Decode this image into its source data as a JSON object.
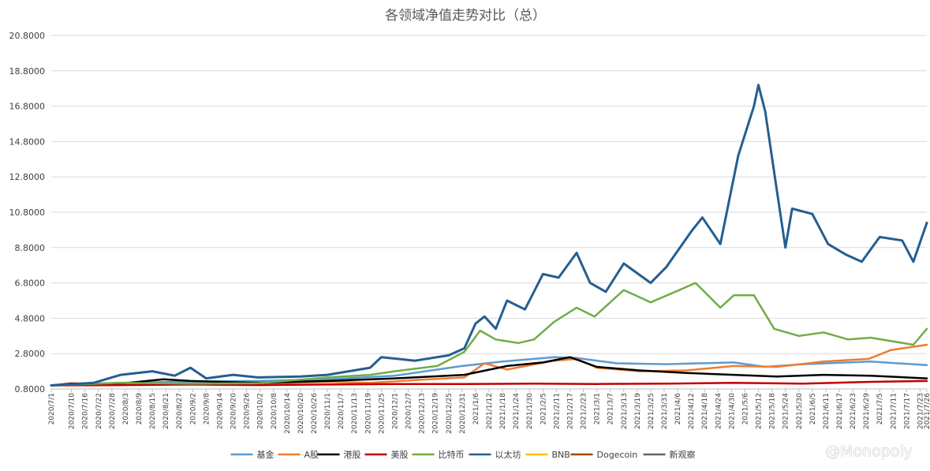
{
  "chart_data": {
    "type": "line",
    "title": "各领域净值走势对比（总）",
    "xlabel": "",
    "ylabel": "",
    "ylim": [
      0.8,
      20.8
    ],
    "yticks": [
      "0.8000",
      "2.8000",
      "4.8000",
      "6.8000",
      "8.8000",
      "10.8000",
      "12.8000",
      "14.8000",
      "16.8000",
      "18.8000",
      "20.8000"
    ],
    "grid": true,
    "legend": "bottom",
    "x_start": "2020/7/1",
    "x_end": "2021/7/26",
    "x_labels": [
      "2020/7/1",
      "2020/7/10",
      "2020/7/16",
      "2020/7/22",
      "2020/7/28",
      "2020/8/3",
      "2020/8/9",
      "2020/8/15",
      "2020/8/21",
      "2020/8/27",
      "2020/9/2",
      "2020/9/8",
      "2020/9/14",
      "2020/9/20",
      "2020/9/26",
      "2020/10/2",
      "2020/10/8",
      "2020/10/14",
      "2020/10/20",
      "2020/10/26",
      "2020/11/1",
      "2020/11/7",
      "2020/11/13",
      "2020/11/19",
      "2020/11/25",
      "2020/12/1",
      "2020/12/7",
      "2020/12/13",
      "2020/12/19",
      "2020/12/25",
      "2020/12/31",
      "2021/1/6",
      "2021/1/12",
      "2021/1/18",
      "2021/1/24",
      "2021/1/30",
      "2021/2/5",
      "2021/2/11",
      "2021/2/17",
      "2021/2/23",
      "2021/3/1",
      "2021/3/7",
      "2021/3/13",
      "2021/3/19",
      "2021/3/25",
      "2021/3/31",
      "2021/4/6",
      "2021/4/12",
      "2021/4/18",
      "2021/4/24",
      "2021/4/30",
      "2021/5/6",
      "2021/5/12",
      "2021/5/18",
      "2021/5/24",
      "2021/5/30",
      "2021/6/5",
      "2021/6/11",
      "2021/6/17",
      "2021/6/23",
      "2021/6/29",
      "2021/7/5",
      "2021/7/11",
      "2021/7/17",
      "2021/7/23",
      "2021/7/26"
    ],
    "series": [
      {
        "name": "基金",
        "color": "#5b9bd5",
        "points": [
          [
            "2020/7/1",
            1.0
          ],
          [
            "2020/8/1",
            1.15
          ],
          [
            "2020/9/1",
            1.22
          ],
          [
            "2020/10/1",
            1.25
          ],
          [
            "2020/11/1",
            1.35
          ],
          [
            "2020/12/1",
            1.55
          ],
          [
            "2020/12/31",
            2.1
          ],
          [
            "2021/1/18",
            2.35
          ],
          [
            "2021/2/10",
            2.6
          ],
          [
            "2021/2/20",
            2.55
          ],
          [
            "2021/3/10",
            2.25
          ],
          [
            "2021/4/1",
            2.2
          ],
          [
            "2021/5/1",
            2.3
          ],
          [
            "2021/5/15",
            2.05
          ],
          [
            "2021/6/1",
            2.2
          ],
          [
            "2021/7/1",
            2.35
          ],
          [
            "2021/7/26",
            2.15
          ]
        ]
      },
      {
        "name": "A股",
        "color": "#ed7d31",
        "points": [
          [
            "2020/7/1",
            1.0
          ],
          [
            "2020/7/10",
            1.12
          ],
          [
            "2020/8/1",
            1.08
          ],
          [
            "2020/9/1",
            1.05
          ],
          [
            "2020/10/1",
            1.1
          ],
          [
            "2020/11/1",
            1.2
          ],
          [
            "2020/11/20",
            1.15
          ],
          [
            "2020/12/10",
            1.3
          ],
          [
            "2021/1/1",
            1.45
          ],
          [
            "2021/1/10",
            2.25
          ],
          [
            "2021/1/20",
            1.9
          ],
          [
            "2021/2/10",
            2.4
          ],
          [
            "2021/2/20",
            2.5
          ],
          [
            "2021/3/1",
            2.0
          ],
          [
            "2021/3/20",
            1.8
          ],
          [
            "2021/4/10",
            1.85
          ],
          [
            "2021/5/1",
            2.1
          ],
          [
            "2021/5/20",
            2.05
          ],
          [
            "2021/6/10",
            2.35
          ],
          [
            "2021/6/30",
            2.5
          ],
          [
            "2021/7/10",
            3.0
          ],
          [
            "2021/7/26",
            3.3
          ]
        ]
      },
      {
        "name": "港股",
        "color": "#000000",
        "points": [
          [
            "2020/7/1",
            1.0
          ],
          [
            "2020/7/10",
            1.1
          ],
          [
            "2020/8/1",
            1.1
          ],
          [
            "2020/8/20",
            1.35
          ],
          [
            "2020/9/1",
            1.25
          ],
          [
            "2020/10/1",
            1.15
          ],
          [
            "2020/11/1",
            1.25
          ],
          [
            "2020/12/1",
            1.4
          ],
          [
            "2021/1/1",
            1.6
          ],
          [
            "2021/1/20",
            2.1
          ],
          [
            "2021/2/5",
            2.3
          ],
          [
            "2021/2/17",
            2.6
          ],
          [
            "2021/3/1",
            2.05
          ],
          [
            "2021/3/20",
            1.85
          ],
          [
            "2021/4/10",
            1.7
          ],
          [
            "2021/5/1",
            1.6
          ],
          [
            "2021/5/20",
            1.5
          ],
          [
            "2021/6/10",
            1.6
          ],
          [
            "2021/7/1",
            1.55
          ],
          [
            "2021/7/26",
            1.4
          ]
        ]
      },
      {
        "name": "美股",
        "color": "#c00000",
        "points": [
          [
            "2020/7/1",
            1.0
          ],
          [
            "2020/8/1",
            1.02
          ],
          [
            "2020/9/1",
            1.05
          ],
          [
            "2020/10/1",
            1.02
          ],
          [
            "2020/11/1",
            1.05
          ],
          [
            "2020/12/1",
            1.08
          ],
          [
            "2021/1/1",
            1.08
          ],
          [
            "2021/2/1",
            1.1
          ],
          [
            "2021/3/1",
            1.08
          ],
          [
            "2021/4/1",
            1.1
          ],
          [
            "2021/5/1",
            1.15
          ],
          [
            "2021/6/1",
            1.1
          ],
          [
            "2021/7/1",
            1.2
          ],
          [
            "2021/7/26",
            1.25
          ]
        ]
      },
      {
        "name": "比特币",
        "color": "#70ad47",
        "points": [
          [
            "2020/7/1",
            1.0
          ],
          [
            "2020/8/1",
            1.15
          ],
          [
            "2020/9/1",
            1.1
          ],
          [
            "2020/10/1",
            1.12
          ],
          [
            "2020/11/1",
            1.45
          ],
          [
            "2020/11/20",
            1.6
          ],
          [
            "2020/12/1",
            1.8
          ],
          [
            "2020/12/20",
            2.1
          ],
          [
            "2021/1/1",
            2.9
          ],
          [
            "2021/1/8",
            4.1
          ],
          [
            "2021/1/15",
            3.6
          ],
          [
            "2021/1/25",
            3.4
          ],
          [
            "2021/2/1",
            3.6
          ],
          [
            "2021/2/10",
            4.6
          ],
          [
            "2021/2/20",
            5.4
          ],
          [
            "2021/2/28",
            4.9
          ],
          [
            "2021/3/13",
            6.4
          ],
          [
            "2021/3/25",
            5.7
          ],
          [
            "2021/4/5",
            6.3
          ],
          [
            "2021/4/14",
            6.8
          ],
          [
            "2021/4/25",
            5.4
          ],
          [
            "2021/5/1",
            6.1
          ],
          [
            "2021/5/10",
            6.1
          ],
          [
            "2021/5/19",
            4.2
          ],
          [
            "2021/5/30",
            3.8
          ],
          [
            "2021/6/10",
            4.0
          ],
          [
            "2021/6/21",
            3.6
          ],
          [
            "2021/7/1",
            3.7
          ],
          [
            "2021/7/20",
            3.3
          ],
          [
            "2021/7/26",
            4.2
          ]
        ]
      },
      {
        "name": "以太坊",
        "color": "#255e91",
        "points": [
          [
            "2020/7/1",
            1.0
          ],
          [
            "2020/7/20",
            1.15
          ],
          [
            "2020/8/1",
            1.6
          ],
          [
            "2020/8/15",
            1.8
          ],
          [
            "2020/8/25",
            1.55
          ],
          [
            "2020/9/1",
            2.0
          ],
          [
            "2020/9/8",
            1.4
          ],
          [
            "2020/9/20",
            1.6
          ],
          [
            "2020/10/1",
            1.45
          ],
          [
            "2020/10/20",
            1.5
          ],
          [
            "2020/11/1",
            1.6
          ],
          [
            "2020/11/20",
            2.0
          ],
          [
            "2020/11/25",
            2.6
          ],
          [
            "2020/12/10",
            2.4
          ],
          [
            "2020/12/25",
            2.7
          ],
          [
            "2021/1/1",
            3.1
          ],
          [
            "2021/1/6",
            4.5
          ],
          [
            "2021/1/10",
            4.9
          ],
          [
            "2021/1/15",
            4.2
          ],
          [
            "2021/1/20",
            5.8
          ],
          [
            "2021/1/28",
            5.3
          ],
          [
            "2021/2/5",
            7.3
          ],
          [
            "2021/2/12",
            7.1
          ],
          [
            "2021/2/20",
            8.5
          ],
          [
            "2021/2/26",
            6.8
          ],
          [
            "2021/3/5",
            6.3
          ],
          [
            "2021/3/13",
            7.9
          ],
          [
            "2021/3/25",
            6.8
          ],
          [
            "2021/4/1",
            7.7
          ],
          [
            "2021/4/12",
            9.7
          ],
          [
            "2021/4/17",
            10.5
          ],
          [
            "2021/4/25",
            9.0
          ],
          [
            "2021/5/3",
            14.0
          ],
          [
            "2021/5/10",
            16.8
          ],
          [
            "2021/5/12",
            18.0
          ],
          [
            "2021/5/15",
            16.5
          ],
          [
            "2021/5/20",
            12.2
          ],
          [
            "2021/5/24",
            8.8
          ],
          [
            "2021/5/27",
            11.0
          ],
          [
            "2021/6/5",
            10.7
          ],
          [
            "2021/6/12",
            9.0
          ],
          [
            "2021/6/20",
            8.4
          ],
          [
            "2021/6/27",
            8.0
          ],
          [
            "2021/7/5",
            9.4
          ],
          [
            "2021/7/15",
            9.2
          ],
          [
            "2021/7/20",
            8.0
          ],
          [
            "2021/7/26",
            10.2
          ]
        ]
      },
      {
        "name": "BNB",
        "color": "#ffc000",
        "points": []
      },
      {
        "name": "Dogecoin",
        "color": "#9e480e",
        "points": []
      },
      {
        "name": "新观察",
        "color": "#636363",
        "points": []
      }
    ]
  },
  "watermark": "@Monopoly"
}
